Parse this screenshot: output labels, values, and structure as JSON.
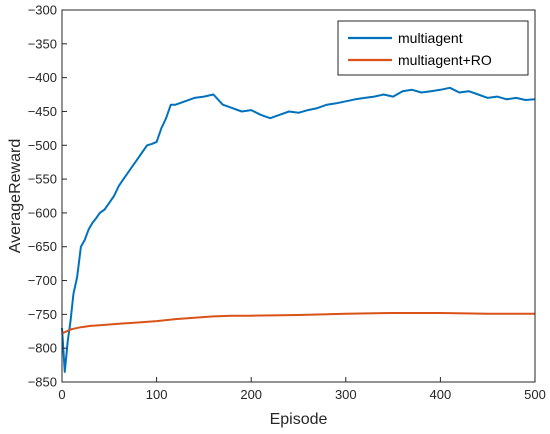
{
  "chart_data": {
    "type": "line",
    "xlabel": "Episode",
    "ylabel": "AverageReward",
    "xlim": [
      0,
      500
    ],
    "ylim": [
      -850,
      -300
    ],
    "xticks": [
      0,
      100,
      200,
      300,
      400,
      500
    ],
    "yticks": [
      -300,
      -350,
      -400,
      -450,
      -500,
      -550,
      -600,
      -650,
      -700,
      -750,
      -800,
      -850
    ],
    "grid": false,
    "legend_position": "top-right",
    "series": [
      {
        "name": "multiagent",
        "color": "#0072BD",
        "x": [
          0,
          3,
          6,
          9,
          12,
          16,
          20,
          24,
          28,
          32,
          36,
          40,
          45,
          50,
          55,
          60,
          65,
          70,
          75,
          80,
          85,
          90,
          95,
          100,
          105,
          110,
          115,
          120,
          130,
          140,
          150,
          160,
          170,
          180,
          190,
          200,
          210,
          220,
          230,
          240,
          250,
          260,
          270,
          280,
          290,
          300,
          310,
          320,
          330,
          340,
          350,
          360,
          370,
          380,
          390,
          400,
          410,
          420,
          430,
          440,
          450,
          460,
          470,
          480,
          490,
          500
        ],
        "y": [
          -770,
          -835,
          -790,
          -760,
          -720,
          -695,
          -650,
          -640,
          -625,
          -615,
          -608,
          -600,
          -595,
          -585,
          -575,
          -560,
          -550,
          -540,
          -530,
          -520,
          -510,
          -500,
          -498,
          -495,
          -475,
          -460,
          -440,
          -440,
          -435,
          -430,
          -428,
          -425,
          -440,
          -445,
          -450,
          -448,
          -455,
          -460,
          -455,
          -450,
          -452,
          -448,
          -445,
          -440,
          -438,
          -435,
          -432,
          -430,
          -428,
          -425,
          -428,
          -420,
          -418,
          -422,
          -420,
          -418,
          -415,
          -422,
          -420,
          -425,
          -430,
          -428,
          -432,
          -430,
          -433,
          -432
        ]
      },
      {
        "name": "multiagent+RO",
        "color": "#D95319",
        "x": [
          0,
          5,
          10,
          20,
          30,
          40,
          50,
          60,
          80,
          100,
          120,
          140,
          160,
          180,
          200,
          250,
          300,
          350,
          400,
          450,
          500
        ],
        "y": [
          -778,
          -775,
          -772,
          -769,
          -767,
          -766,
          -765,
          -764,
          -762,
          -760,
          -757,
          -755,
          -753,
          -752,
          -752,
          -751,
          -749,
          -748,
          -748,
          -749,
          -749
        ]
      }
    ]
  }
}
